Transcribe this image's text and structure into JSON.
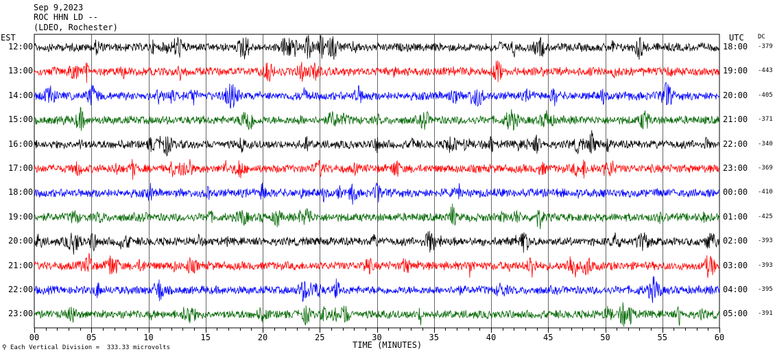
{
  "header": {
    "date": "Sep 9,2023",
    "station": "ROC HHN LD --",
    "network": "(LDEO, Rochester)"
  },
  "colors": {
    "trace_cycle": [
      "#000000",
      "#ff0000",
      "#0000ff",
      "#006600"
    ],
    "grid": "#000000",
    "background": "#ffffff"
  },
  "chart_data": {
    "type": "line",
    "description_type": "helicorder",
    "left_axis_title": "EST",
    "right_axis_title": "UTC",
    "dc_title": "DC",
    "xlabel": "TIME (MINUTES)",
    "x_range": [
      0,
      60
    ],
    "x_ticks": [
      "00",
      "05",
      "10",
      "15",
      "20",
      "25",
      "30",
      "35",
      "40",
      "45",
      "50",
      "55",
      "60"
    ],
    "footer_note": "Each Vertical Division =  333.33 microvolts",
    "rows": [
      {
        "est": "12:00",
        "utc": "18:00",
        "dc": "-379"
      },
      {
        "est": "13:00",
        "utc": "19:00",
        "dc": "-443"
      },
      {
        "est": "14:00",
        "utc": "20:00",
        "dc": "-405"
      },
      {
        "est": "15:00",
        "utc": "21:00",
        "dc": "-371"
      },
      {
        "est": "16:00",
        "utc": "22:00",
        "dc": "-340"
      },
      {
        "est": "17:00",
        "utc": "23:00",
        "dc": "-369"
      },
      {
        "est": "18:00",
        "utc": "00:00",
        "dc": "-410"
      },
      {
        "est": "19:00",
        "utc": "01:00",
        "dc": "-425"
      },
      {
        "est": "20:00",
        "utc": "02:00",
        "dc": "-393"
      },
      {
        "est": "21:00",
        "utc": "03:00",
        "dc": "-393"
      },
      {
        "est": "22:00",
        "utc": "04:00",
        "dc": "-395"
      },
      {
        "est": "23:00",
        "utc": "05:00",
        "dc": "-391"
      }
    ]
  }
}
